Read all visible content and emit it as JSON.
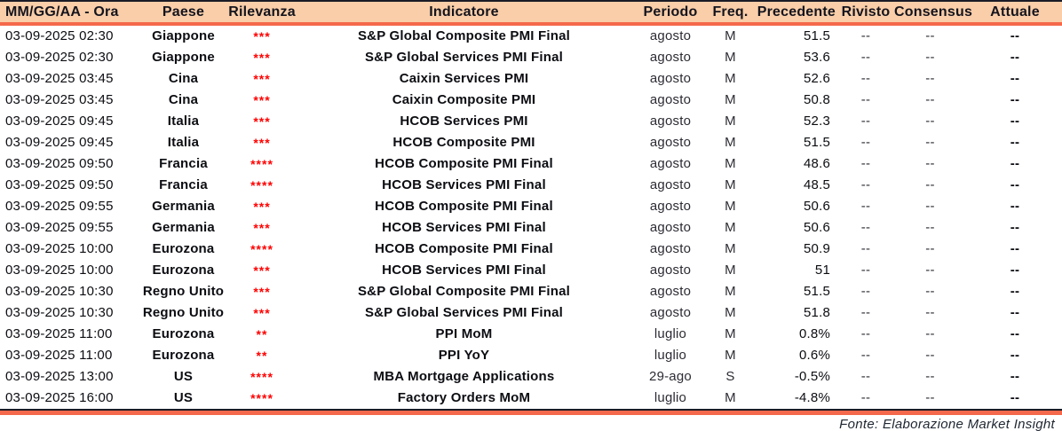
{
  "columns": [
    {
      "key": "datetime",
      "label": "MM/GG/AA - Ora"
    },
    {
      "key": "paese",
      "label": "Paese"
    },
    {
      "key": "rilevanza",
      "label": "Rilevanza"
    },
    {
      "key": "indicatore",
      "label": "Indicatore"
    },
    {
      "key": "periodo",
      "label": "Periodo"
    },
    {
      "key": "freq",
      "label": "Freq."
    },
    {
      "key": "precedente",
      "label": "Precedente"
    },
    {
      "key": "rivisto",
      "label": "Rivisto"
    },
    {
      "key": "consensus",
      "label": "Consensus"
    },
    {
      "key": "attuale",
      "label": "Attuale"
    }
  ],
  "rows": [
    {
      "datetime": "03-09-2025 02:30",
      "paese": "Giappone",
      "rilevanza": "***",
      "indicatore": "S&P Global Composite PMI Final",
      "periodo": "agosto",
      "freq": "M",
      "precedente": "51.5",
      "rivisto": "--",
      "consensus": "--",
      "attuale": "--"
    },
    {
      "datetime": "03-09-2025 02:30",
      "paese": "Giappone",
      "rilevanza": "***",
      "indicatore": "S&P Global Services PMI Final",
      "periodo": "agosto",
      "freq": "M",
      "precedente": "53.6",
      "rivisto": "--",
      "consensus": "--",
      "attuale": "--"
    },
    {
      "datetime": "03-09-2025 03:45",
      "paese": "Cina",
      "rilevanza": "***",
      "indicatore": "Caixin Services PMI",
      "periodo": "agosto",
      "freq": "M",
      "precedente": "52.6",
      "rivisto": "--",
      "consensus": "--",
      "attuale": "--"
    },
    {
      "datetime": "03-09-2025 03:45",
      "paese": "Cina",
      "rilevanza": "***",
      "indicatore": "Caixin Composite PMI",
      "periodo": "agosto",
      "freq": "M",
      "precedente": "50.8",
      "rivisto": "--",
      "consensus": "--",
      "attuale": "--"
    },
    {
      "datetime": "03-09-2025 09:45",
      "paese": "Italia",
      "rilevanza": "***",
      "indicatore": "HCOB Services PMI",
      "periodo": "agosto",
      "freq": "M",
      "precedente": "52.3",
      "rivisto": "--",
      "consensus": "--",
      "attuale": "--"
    },
    {
      "datetime": "03-09-2025 09:45",
      "paese": "Italia",
      "rilevanza": "***",
      "indicatore": "HCOB Composite PMI",
      "periodo": "agosto",
      "freq": "M",
      "precedente": "51.5",
      "rivisto": "--",
      "consensus": "--",
      "attuale": "--"
    },
    {
      "datetime": "03-09-2025 09:50",
      "paese": "Francia",
      "rilevanza": "****",
      "indicatore": "HCOB Composite PMI Final",
      "periodo": "agosto",
      "freq": "M",
      "precedente": "48.6",
      "rivisto": "--",
      "consensus": "--",
      "attuale": "--"
    },
    {
      "datetime": "03-09-2025 09:50",
      "paese": "Francia",
      "rilevanza": "****",
      "indicatore": "HCOB Services PMI Final",
      "periodo": "agosto",
      "freq": "M",
      "precedente": "48.5",
      "rivisto": "--",
      "consensus": "--",
      "attuale": "--"
    },
    {
      "datetime": "03-09-2025 09:55",
      "paese": "Germania",
      "rilevanza": "***",
      "indicatore": "HCOB Composite PMI Final",
      "periodo": "agosto",
      "freq": "M",
      "precedente": "50.6",
      "rivisto": "--",
      "consensus": "--",
      "attuale": "--"
    },
    {
      "datetime": "03-09-2025 09:55",
      "paese": "Germania",
      "rilevanza": "***",
      "indicatore": "HCOB Services PMI Final",
      "periodo": "agosto",
      "freq": "M",
      "precedente": "50.6",
      "rivisto": "--",
      "consensus": "--",
      "attuale": "--"
    },
    {
      "datetime": "03-09-2025 10:00",
      "paese": "Eurozona",
      "rilevanza": "****",
      "indicatore": "HCOB Composite PMI Final",
      "periodo": "agosto",
      "freq": "M",
      "precedente": "50.9",
      "rivisto": "--",
      "consensus": "--",
      "attuale": "--"
    },
    {
      "datetime": "03-09-2025 10:00",
      "paese": "Eurozona",
      "rilevanza": "***",
      "indicatore": "HCOB Services PMI Final",
      "periodo": "agosto",
      "freq": "M",
      "precedente": "51",
      "rivisto": "--",
      "consensus": "--",
      "attuale": "--"
    },
    {
      "datetime": "03-09-2025 10:30",
      "paese": "Regno Unito",
      "rilevanza": "***",
      "indicatore": "S&P Global Composite PMI Final",
      "periodo": "agosto",
      "freq": "M",
      "precedente": "51.5",
      "rivisto": "--",
      "consensus": "--",
      "attuale": "--"
    },
    {
      "datetime": "03-09-2025 10:30",
      "paese": "Regno Unito",
      "rilevanza": "***",
      "indicatore": "S&P Global Services PMI Final",
      "periodo": "agosto",
      "freq": "M",
      "precedente": "51.8",
      "rivisto": "--",
      "consensus": "--",
      "attuale": "--"
    },
    {
      "datetime": "03-09-2025 11:00",
      "paese": "Eurozona",
      "rilevanza": "**",
      "indicatore": "PPI MoM",
      "periodo": "luglio",
      "freq": "M",
      "precedente": "0.8%",
      "rivisto": "--",
      "consensus": "--",
      "attuale": "--"
    },
    {
      "datetime": "03-09-2025 11:00",
      "paese": "Eurozona",
      "rilevanza": "**",
      "indicatore": "PPI YoY",
      "periodo": "luglio",
      "freq": "M",
      "precedente": "0.6%",
      "rivisto": "--",
      "consensus": "--",
      "attuale": "--"
    },
    {
      "datetime": "03-09-2025 13:00",
      "paese": "US",
      "rilevanza": "****",
      "indicatore": "MBA Mortgage Applications",
      "periodo": "29-ago",
      "freq": "S",
      "precedente": "-0.5%",
      "rivisto": "--",
      "consensus": "--",
      "attuale": "--"
    },
    {
      "datetime": "03-09-2025 16:00",
      "paese": "US",
      "rilevanza": "****",
      "indicatore": "Factory Orders MoM",
      "periodo": "luglio",
      "freq": "M",
      "precedente": "-4.8%",
      "rivisto": "--",
      "consensus": "--",
      "attuale": "--"
    }
  ],
  "footer": {
    "source": "Fonte: Elaborazione Market Insight"
  },
  "colors": {
    "header_bg": "#F9CEA8",
    "accent_line": "#F4694B",
    "top_border": "#1B1B26",
    "star_red": "#FF0000",
    "text": "#0C0D12"
  }
}
